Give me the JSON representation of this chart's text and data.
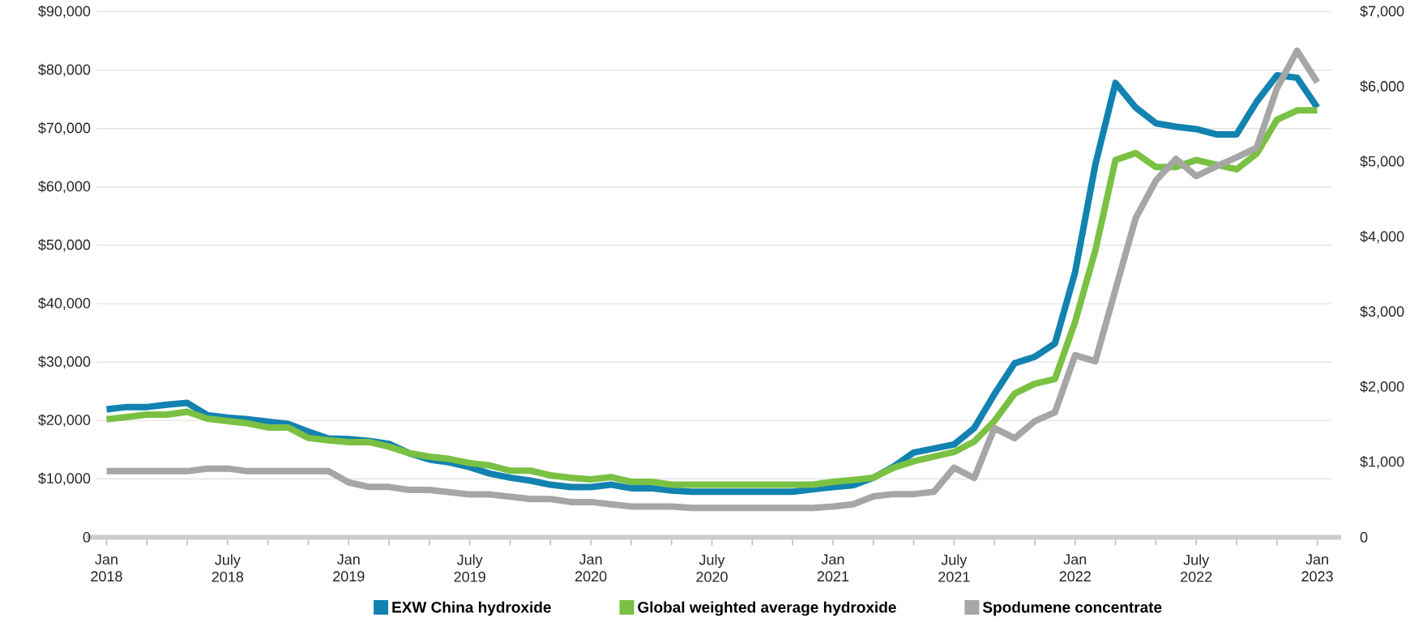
{
  "chart_data": {
    "type": "line",
    "x": [
      "2018-01",
      "2018-02",
      "2018-03",
      "2018-04",
      "2018-05",
      "2018-06",
      "2018-07",
      "2018-08",
      "2018-09",
      "2018-10",
      "2018-11",
      "2018-12",
      "2019-01",
      "2019-02",
      "2019-03",
      "2019-04",
      "2019-05",
      "2019-06",
      "2019-07",
      "2019-08",
      "2019-09",
      "2019-10",
      "2019-11",
      "2019-12",
      "2020-01",
      "2020-02",
      "2020-03",
      "2020-04",
      "2020-05",
      "2020-06",
      "2020-07",
      "2020-08",
      "2020-09",
      "2020-10",
      "2020-11",
      "2020-12",
      "2021-01",
      "2021-02",
      "2021-03",
      "2021-04",
      "2021-05",
      "2021-06",
      "2021-07",
      "2021-08",
      "2021-09",
      "2021-10",
      "2021-11",
      "2021-12",
      "2022-01",
      "2022-02",
      "2022-03",
      "2022-04",
      "2022-05",
      "2022-06",
      "2022-07",
      "2022-08",
      "2022-09",
      "2022-10",
      "2022-11",
      "2022-12",
      "2023-01"
    ],
    "xlim": [
      "2017-12-16",
      "2023-01-22"
    ],
    "xticks": [
      {
        "value": "2018-01",
        "label": "Jan 2018"
      },
      {
        "value": "2018-03",
        "label": null
      },
      {
        "value": "2018-05",
        "label": null
      },
      {
        "value": "2018-07",
        "label": "July 2018"
      },
      {
        "value": "2018-09",
        "label": null
      },
      {
        "value": "2018-11",
        "label": null
      },
      {
        "value": "2019-01",
        "label": "Jan 2019"
      },
      {
        "value": "2019-03",
        "label": null
      },
      {
        "value": "2019-05",
        "label": null
      },
      {
        "value": "2019-07",
        "label": "July 2019"
      },
      {
        "value": "2019-09",
        "label": null
      },
      {
        "value": "2019-11",
        "label": null
      },
      {
        "value": "2020-01",
        "label": "Jan 2020"
      },
      {
        "value": "2020-03",
        "label": null
      },
      {
        "value": "2020-05",
        "label": null
      },
      {
        "value": "2020-07",
        "label": "July 2020"
      },
      {
        "value": "2020-09",
        "label": null
      },
      {
        "value": "2020-11",
        "label": null
      },
      {
        "value": "2021-01",
        "label": "Jan 2021"
      },
      {
        "value": "2021-03",
        "label": null
      },
      {
        "value": "2021-05",
        "label": null
      },
      {
        "value": "2021-07",
        "label": "July 2021"
      },
      {
        "value": "2021-09",
        "label": null
      },
      {
        "value": "2021-11",
        "label": null
      },
      {
        "value": "2022-01",
        "label": "Jan 2022"
      },
      {
        "value": "2022-03",
        "label": null
      },
      {
        "value": "2022-05",
        "label": null
      },
      {
        "value": "2022-07",
        "label": "July 2022"
      },
      {
        "value": "2022-09",
        "label": null
      },
      {
        "value": "2022-11",
        "label": null
      },
      {
        "value": "2023-01",
        "label": "Jan 2023"
      }
    ],
    "ylim": [
      0,
      90000
    ],
    "yticks": [
      0,
      {
        "value": 10000,
        "label": "$10,000"
      },
      {
        "value": 20000,
        "label": "$20,000"
      },
      {
        "value": 30000,
        "label": "$30,000"
      },
      {
        "value": 40000,
        "label": "$40,000"
      },
      {
        "value": 50000,
        "label": "$50,000"
      },
      {
        "value": 60000,
        "label": "$60,000"
      },
      {
        "value": 70000,
        "label": "$70,000"
      },
      {
        "value": 80000,
        "label": "$80,000"
      },
      {
        "value": 90000,
        "label": "$90,000"
      }
    ],
    "y2lim": [
      0,
      7000
    ],
    "y2ticks": [
      0,
      {
        "value": 1000,
        "label": "$1,000"
      },
      {
        "value": 2000,
        "label": "$2,000"
      },
      {
        "value": 3000,
        "label": "$3,000"
      },
      {
        "value": 4000,
        "label": "$4,000"
      },
      {
        "value": 5000,
        "label": "$5,000"
      },
      {
        "value": 6000,
        "label": "$6,000"
      },
      {
        "value": 7000,
        "label": "$7,000"
      }
    ],
    "grid": "y",
    "legend": "bottom",
    "marker": "none",
    "line_style": "solid",
    "series": [
      {
        "name": "EXW China hydroxide",
        "color": "#1282b0",
        "values": [
          21900,
          22300,
          22300,
          22700,
          23000,
          20900,
          20500,
          20200,
          19800,
          19400,
          18100,
          16900,
          16800,
          16500,
          16000,
          14400,
          13300,
          12800,
          12000,
          10900,
          10200,
          9700,
          9000,
          8600,
          8600,
          9000,
          8400,
          8400,
          8000,
          7800,
          7800,
          7800,
          7800,
          7800,
          7800,
          8200,
          8600,
          8900,
          10200,
          12100,
          14500,
          15200,
          15900,
          18700,
          24500,
          29800,
          30900,
          33200,
          45400,
          63800,
          77800,
          73600,
          70900,
          70300,
          69900,
          69000,
          69000,
          74600,
          79100,
          78700,
          73600
        ]
      },
      {
        "name": "Global weighted average hydroxide",
        "color": "#7ac143",
        "values": [
          20200,
          20600,
          21000,
          21000,
          21500,
          20300,
          19900,
          19500,
          18800,
          18800,
          17000,
          16600,
          16300,
          16300,
          15500,
          14400,
          13800,
          13400,
          12700,
          12300,
          11400,
          11400,
          10600,
          10200,
          9900,
          10300,
          9500,
          9500,
          9000,
          9000,
          9000,
          9000,
          9000,
          9000,
          9000,
          9000,
          9500,
          9800,
          10200,
          11900,
          13000,
          13800,
          14600,
          16400,
          19900,
          24600,
          26300,
          27100,
          36900,
          49100,
          64600,
          65800,
          63400,
          63400,
          64600,
          63800,
          63000,
          65700,
          71500,
          73100,
          73100
        ]
      },
      {
        "name": "Spodumene concentrate",
        "color": "#a6a6a6",
        "axis": "y2",
        "values": [
          880,
          880,
          880,
          880,
          880,
          915,
          915,
          880,
          880,
          880,
          880,
          880,
          730,
          670,
          670,
          630,
          630,
          600,
          570,
          570,
          540,
          510,
          510,
          470,
          470,
          440,
          410,
          410,
          410,
          390,
          390,
          390,
          390,
          390,
          390,
          390,
          410,
          440,
          545,
          575,
          575,
          605,
          925,
          790,
          1455,
          1320,
          1545,
          1665,
          2425,
          2345,
          3300,
          4250,
          4750,
          5040,
          4810,
          4940,
          5060,
          5190,
          5980,
          6480,
          6060
        ]
      }
    ]
  }
}
